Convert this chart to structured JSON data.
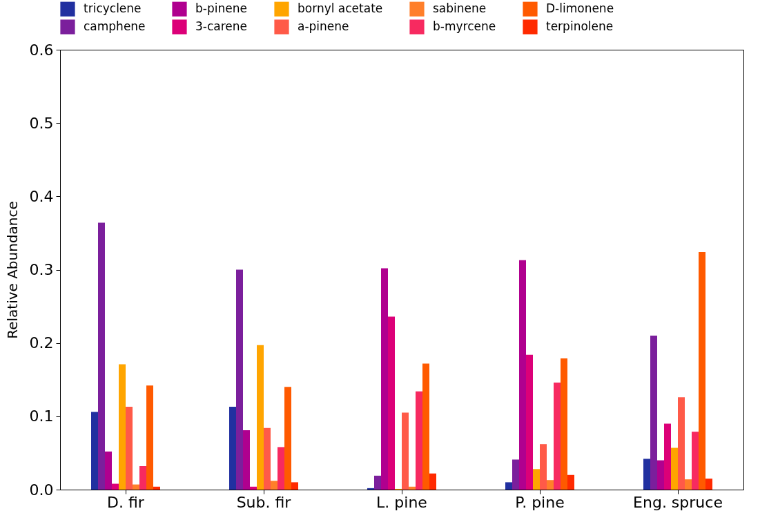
{
  "chart_data": {
    "type": "bar",
    "ylabel": "Relative Abundance",
    "categories": [
      "D. fir",
      "Sub. fir",
      "L. pine",
      "P. pine",
      "Eng. spruce"
    ],
    "series": [
      {
        "name": "tricyclene",
        "color": "#2130a0",
        "values": [
          0.106,
          0.113,
          0.002,
          0.01,
          0.042
        ]
      },
      {
        "name": "camphene",
        "color": "#7b1f9c",
        "values": [
          0.364,
          0.3,
          0.019,
          0.041,
          0.21
        ]
      },
      {
        "name": "b-pinene",
        "color": "#b0008f",
        "values": [
          0.052,
          0.081,
          0.302,
          0.313,
          0.04
        ]
      },
      {
        "name": "3-carene",
        "color": "#dc0078",
        "values": [
          0.008,
          0.004,
          0.236,
          0.184,
          0.09
        ]
      },
      {
        "name": "bornyl acetate",
        "color": "#ffa500",
        "values": [
          0.171,
          0.197,
          0.001,
          0.028,
          0.057
        ]
      },
      {
        "name": "a-pinene",
        "color": "#ff5a48",
        "values": [
          0.113,
          0.084,
          0.105,
          0.062,
          0.126
        ]
      },
      {
        "name": "sabinene",
        "color": "#ff7f2a",
        "values": [
          0.007,
          0.012,
          0.004,
          0.013,
          0.014
        ]
      },
      {
        "name": "b-myrcene",
        "color": "#f72a60",
        "values": [
          0.032,
          0.058,
          0.134,
          0.146,
          0.079
        ]
      },
      {
        "name": "D-limonene",
        "color": "#ff5a00",
        "values": [
          0.142,
          0.14,
          0.172,
          0.179,
          0.324
        ]
      },
      {
        "name": "terpinolene",
        "color": "#ff2a00",
        "values": [
          0.004,
          0.01,
          0.022,
          0.02,
          0.015
        ]
      }
    ],
    "ylim": [
      0,
      0.6
    ],
    "yticks": [
      {
        "value": 0,
        "label": "0.0"
      },
      0.1,
      0.2,
      0.3,
      0.4,
      0.5,
      0.6
    ],
    "grid": false,
    "legend": "top"
  }
}
